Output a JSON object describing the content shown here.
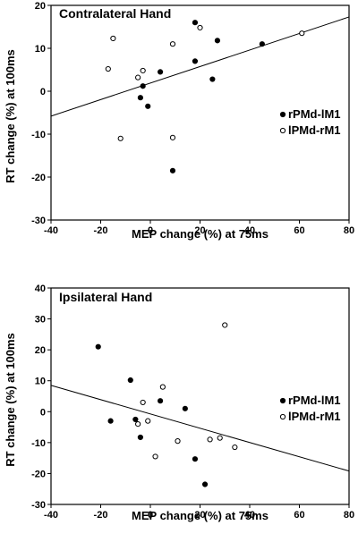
{
  "chart_data": [
    {
      "type": "scatter",
      "title": "Contralateral Hand",
      "xlabel": "MEP change (%) at 75ms",
      "ylabel": "RT change (%) at 100ms",
      "xlim": [
        -40,
        80
      ],
      "ylim": [
        -30,
        20
      ],
      "xticks": [
        "-40",
        "-20",
        "0",
        "20",
        "40",
        "60",
        "80"
      ],
      "yticks": [
        "20",
        "10",
        "0",
        "-10",
        "-20",
        "-30"
      ],
      "legend_position": "right",
      "series": [
        {
          "name": "rPMd-lM1",
          "marker": "filled",
          "points": [
            [
              18,
              16
            ],
            [
              27,
              11.8
            ],
            [
              45,
              11
            ],
            [
              18,
              7
            ],
            [
              4,
              4.5
            ],
            [
              25,
              2.8
            ],
            [
              -3,
              1.2
            ],
            [
              -4,
              -1.5
            ],
            [
              -1,
              -3.5
            ],
            [
              9,
              -18.5
            ]
          ]
        },
        {
          "name": "lPMd-rM1",
          "marker": "open",
          "points": [
            [
              -15,
              12.3
            ],
            [
              20,
              14.8
            ],
            [
              61,
              13.5
            ],
            [
              9,
              11
            ],
            [
              -17,
              5.2
            ],
            [
              -3,
              4.8
            ],
            [
              -5,
              3.2
            ],
            [
              -12,
              -11
            ],
            [
              9,
              -10.8
            ]
          ]
        }
      ],
      "trendline": [
        [
          -40,
          -5.8
        ],
        [
          80,
          17.3
        ]
      ]
    },
    {
      "type": "scatter",
      "title": "Ipsilateral Hand",
      "xlabel": "MEP change (%) at 75ms",
      "ylabel": "RT change (%) at 100ms",
      "xlim": [
        -40,
        80
      ],
      "ylim": [
        -30,
        40
      ],
      "xticks": [
        "-40",
        "-20",
        "0",
        "20",
        "40",
        "60",
        "80"
      ],
      "yticks": [
        "40",
        "30",
        "20",
        "10",
        "0",
        "-10",
        "-20",
        "-30"
      ],
      "legend_position": "right",
      "series": [
        {
          "name": "rPMd-lM1",
          "marker": "filled",
          "points": [
            [
              -21,
              21
            ],
            [
              -8,
              10.2
            ],
            [
              -16,
              -3
            ],
            [
              -6,
              -2.5
            ],
            [
              4,
              3.5
            ],
            [
              14,
              1
            ],
            [
              -4,
              -8.3
            ],
            [
              18,
              -15.3
            ],
            [
              22,
              -23.5
            ]
          ]
        },
        {
          "name": "lPMd-rM1",
          "marker": "open",
          "points": [
            [
              30,
              28
            ],
            [
              5,
              8
            ],
            [
              -3,
              3
            ],
            [
              -1,
              -3
            ],
            [
              -5,
              -4
            ],
            [
              11,
              -9.5
            ],
            [
              24,
              -9
            ],
            [
              28,
              -8.5
            ],
            [
              34,
              -11.5
            ],
            [
              2,
              -14.5
            ]
          ]
        }
      ],
      "trendline": [
        [
          -40,
          8.5
        ],
        [
          80,
          -19.2
        ]
      ]
    }
  ]
}
